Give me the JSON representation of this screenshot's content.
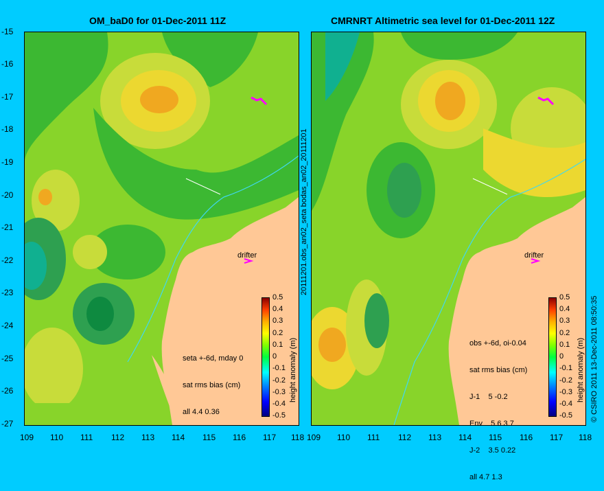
{
  "left_panel": {
    "title": "OM_baD0 for 01-Dec-2011 11Z",
    "stats_lines": [
      "seta +-6d, mday 0",
      "sat rms bias (cm)",
      "all 4.4 0.36"
    ],
    "drifter_label": "drifter"
  },
  "right_panel": {
    "title": "CMRNRT Altimetric sea level  for 01-Dec-2011 12Z",
    "stats_lines": [
      "obs +-6d, oi-0.04",
      "sat rms bias (cm)",
      "J-1    5 -0.2",
      "Env    5.6 3.7",
      "J-2    3.5 0.22",
      "all 4.7 1.3"
    ],
    "drifter_label": "drifter"
  },
  "between_label": "20111201.obs_an02_seta      bodas_an02_20111201",
  "colorbar": {
    "label": "height anomaly (m)",
    "ticks": [
      "0.5",
      "0.4",
      "0.3",
      "0.2",
      "0.1",
      "0",
      "-0.1",
      "-0.2",
      "-0.3",
      "-0.4",
      "-0.5"
    ],
    "colors": [
      "#000080",
      "#0000ff",
      "#0080ff",
      "#00ffff",
      "#00ff40",
      "#80ff00",
      "#ffff00",
      "#ffb000",
      "#ff4000",
      "#8b0000"
    ]
  },
  "axes": {
    "lat_ticks": [
      "-15",
      "-16",
      "-17",
      "-18",
      "-19",
      "-20",
      "-21",
      "-22",
      "-23",
      "-24",
      "-25",
      "-26",
      "-27"
    ],
    "lon_ticks": [
      "109",
      "110",
      "111",
      "112",
      "113",
      "114",
      "115",
      "116",
      "117",
      "118"
    ]
  },
  "credit": "© CSIRO 2011   13-Dec-2011 08:50:35"
}
